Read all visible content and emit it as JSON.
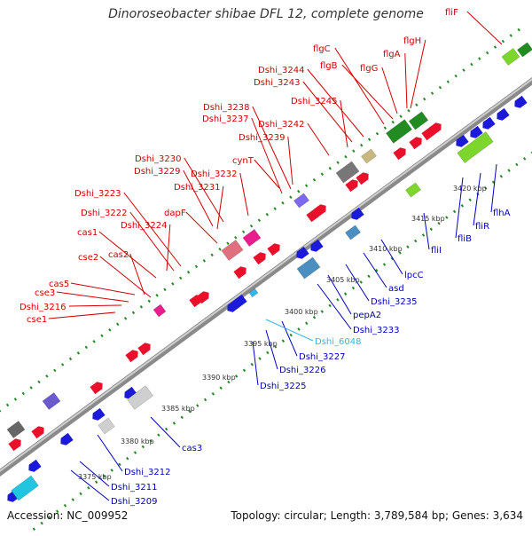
{
  "title": "Dinoroseobacter shibae DFL 12, complete genome",
  "footer": {
    "accession": "Accession: NC_009952",
    "summary": "Topology: circular; Length: 3,789,584 bp; Genes: 3,634"
  },
  "colors": {
    "forward_label": "#d00000",
    "reverse_label": "#0000c0",
    "rna_label": "#33b5e5",
    "backbone": "#8a8a8a",
    "tick_dots": "#228b22"
  },
  "scale_ticks": [
    "3375 kbp",
    "3380 kbp",
    "3385 kbp",
    "3390 kbp",
    "3395 kbp",
    "3400 kbp",
    "3405 kbp",
    "3410 kbp",
    "3415 kbp",
    "3420 kbp"
  ],
  "forward_genes": [
    "cse1",
    "Dshi_3216",
    "cse3",
    "cas5",
    "cas2",
    "cse2",
    "cas1",
    "Dshi_3224",
    "Dshi_3222",
    "Dshi_3223",
    "dapF",
    "Dshi_3231",
    "Dshi_3229",
    "Dshi_3230",
    "Dshi_3232",
    "cynT",
    "Dshi_3239",
    "Dshi_3237",
    "Dshi_3238",
    "Dshi_3242",
    "Dshi_3245",
    "Dshi_3243",
    "Dshi_3244",
    "flgB",
    "flgC",
    "flgG",
    "flgA",
    "flgH",
    "fliF"
  ],
  "reverse_genes": [
    "Dshi_3209",
    "Dshi_3211",
    "Dshi_3212",
    "cas3",
    "Dshi_3225",
    "Dshi_3226",
    "Dshi_3227",
    "Dshi_6048",
    "Dshi_3233",
    "pepA2",
    "Dshi_3235",
    "asd",
    "lpcC",
    "fliI",
    "fliB",
    "fliR",
    "flhA"
  ]
}
